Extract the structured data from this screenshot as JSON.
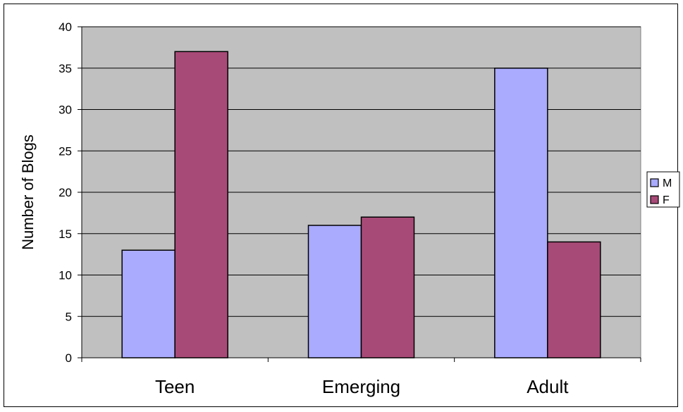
{
  "chart_data": {
    "type": "bar",
    "title": "",
    "xlabel": "",
    "ylabel": "Number of Blogs",
    "categories": [
      "Teen",
      "Emerging",
      "Adult"
    ],
    "series": [
      {
        "name": "M",
        "values": [
          13,
          16,
          35
        ],
        "color": "#aaaaff"
      },
      {
        "name": "F",
        "values": [
          37,
          17,
          14
        ],
        "color": "#a84a77"
      }
    ],
    "ylim": [
      0,
      40
    ],
    "yticks": [
      0,
      5,
      10,
      15,
      20,
      25,
      30,
      35,
      40
    ],
    "grid": true,
    "legend_position": "right",
    "plot_background": "#c0c0c0"
  }
}
